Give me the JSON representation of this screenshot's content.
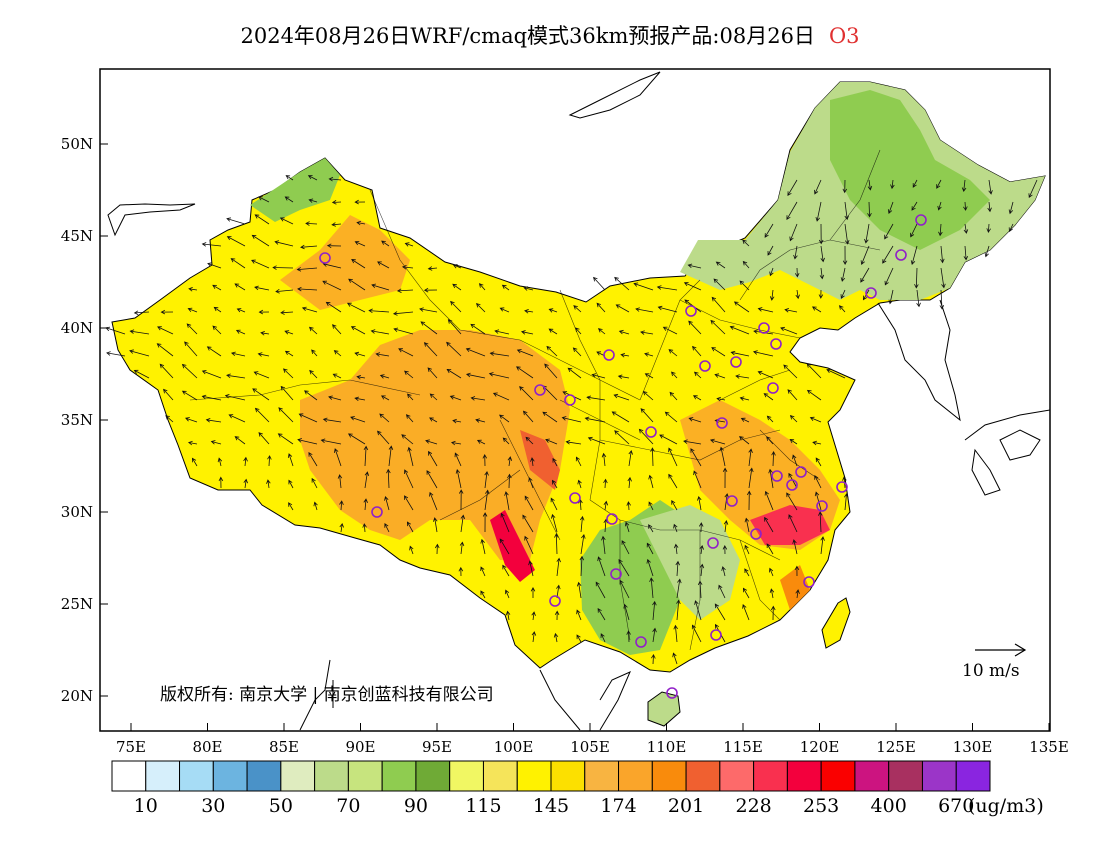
{
  "title": {
    "main": "2024年08月26日WRF/cmaq模式36km预报产品:08月26日",
    "species": "O3"
  },
  "axes": {
    "lon_ticks": [
      "75E",
      "80E",
      "85E",
      "90E",
      "95E",
      "100E",
      "105E",
      "110E",
      "115E",
      "120E",
      "125E",
      "130E",
      "135E"
    ],
    "lat_ticks": [
      "50N",
      "45N",
      "40N",
      "35N",
      "30N",
      "25N",
      "20N"
    ]
  },
  "colorbar": {
    "colors": [
      "#ffffff",
      "#d6effb",
      "#a6dcf5",
      "#6cb4e0",
      "#4a92c8",
      "#dfecbf",
      "#bcdb8a",
      "#c7e47e",
      "#8fcc50",
      "#6faa36",
      "#f1f763",
      "#f5e45a",
      "#fff200",
      "#fce000",
      "#f8b441",
      "#faa52a",
      "#f98b0c",
      "#f06030",
      "#fd6a6a",
      "#f9304f",
      "#f3003d",
      "#fa0000",
      "#cc1480",
      "#a83060",
      "#9b35c8",
      "#8a25e0"
    ],
    "labels": [
      "10",
      "30",
      "50",
      "70",
      "90",
      "115",
      "145",
      "174",
      "201",
      "228",
      "253",
      "400",
      "670"
    ],
    "units": "(ug/m3)"
  },
  "copyright": "版权所有: 南京大学 | 南京创蓝科技有限公司",
  "wind_scale": "10 m/s",
  "city_markers": 32
}
